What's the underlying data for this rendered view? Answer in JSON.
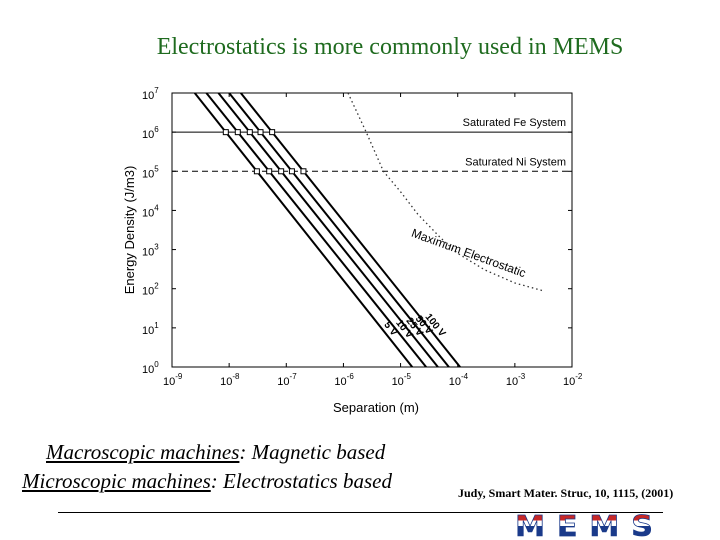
{
  "slide": {
    "title": "Electrostatics is more commonly used in MEMS",
    "caption_line1_link": "Macroscopic machines",
    "caption_line1_rest": ": Magnetic based",
    "caption_line2_link": "Microscopic machines",
    "caption_line2_rest": ": Electrostatics based",
    "citation": "Judy, Smart Mater. Struc, 10, 1115, (2001)",
    "logo_text": "MEMS"
  },
  "colors": {
    "title": "#1f6b1f",
    "logo_red": "#c62828",
    "logo_blue": "#1a3a8a"
  },
  "chart_data": {
    "type": "line",
    "xlabel": "Separation (m)",
    "ylabel": "Energy Density (J/m3)",
    "xscale": "log",
    "yscale": "log",
    "xlim": [
      1e-09,
      0.01
    ],
    "ylim": [
      1,
      10000000.0
    ],
    "x_ticks": [
      {
        "base": "10",
        "exp": "-9"
      },
      {
        "base": "10",
        "exp": "-8"
      },
      {
        "base": "10",
        "exp": "-7"
      },
      {
        "base": "10",
        "exp": "-6"
      },
      {
        "base": "10",
        "exp": "-5"
      },
      {
        "base": "10",
        "exp": "-4"
      },
      {
        "base": "10",
        "exp": "-3"
      },
      {
        "base": "10",
        "exp": "-2"
      }
    ],
    "y_ticks": [
      {
        "base": "10",
        "exp": "0"
      },
      {
        "base": "10",
        "exp": "1"
      },
      {
        "base": "10",
        "exp": "2"
      },
      {
        "base": "10",
        "exp": "3"
      },
      {
        "base": "10",
        "exp": "4"
      },
      {
        "base": "10",
        "exp": "5"
      },
      {
        "base": "10",
        "exp": "6"
      },
      {
        "base": "10",
        "exp": "7"
      }
    ],
    "hlines": [
      {
        "name": "Saturated Fe System",
        "y": 1000000,
        "style": "solid"
      },
      {
        "name": "Saturated Ni System",
        "y": 100000,
        "style": "dashed"
      }
    ],
    "series": [
      {
        "name": "5 V",
        "x": [
          2.5e-09,
          1.6e-05
        ],
        "y": [
          10000000,
          1
        ]
      },
      {
        "name": "10 V",
        "x": [
          4e-09,
          2.8e-05
        ],
        "y": [
          10000000,
          1
        ]
      },
      {
        "name": "25 V",
        "x": [
          6.5e-09,
          4.5e-05
        ],
        "y": [
          10000000,
          1
        ]
      },
      {
        "name": "50 V",
        "x": [
          1e-08,
          7e-05
        ],
        "y": [
          10000000,
          1
        ]
      },
      {
        "name": "100 V",
        "x": [
          1.6e-08,
          0.00011
        ],
        "y": [
          10000000,
          1
        ]
      }
    ],
    "max_curve": {
      "name": "Maximum Electrostatic",
      "x": [
        1.2e-06,
        2.5e-06,
        5e-06,
        1e-05,
        2e-05,
        5e-05,
        0.0001,
        0.0003,
        0.001,
        0.003
      ],
      "y": [
        10000000,
        1000000,
        100000,
        30000,
        8000,
        2000,
        800,
        300,
        140,
        90
      ]
    },
    "marker_y": [
      100000,
      1000000
    ],
    "grid": false
  }
}
